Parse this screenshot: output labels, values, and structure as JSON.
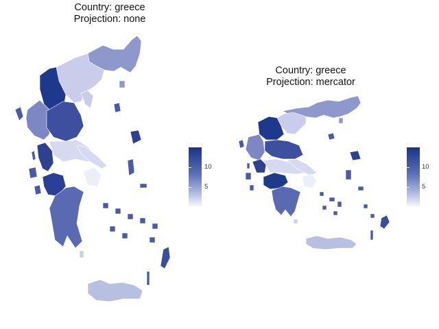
{
  "maps": [
    {
      "title_line1": "Country: greece",
      "title_line2": "Projection: none",
      "legend": {
        "ticks": [
          "10",
          "5"
        ],
        "min": 1,
        "max": 13
      }
    },
    {
      "title_line1": "Country: greece",
      "title_line2": "Projection: mercator",
      "legend": {
        "ticks": [
          "10",
          "5"
        ],
        "min": 1,
        "max": 13
      }
    }
  ],
  "colors": {
    "high": "#1a3388",
    "mid": "#5a6fb8",
    "low": "#f6f6fc",
    "border": "#ffffff"
  }
}
